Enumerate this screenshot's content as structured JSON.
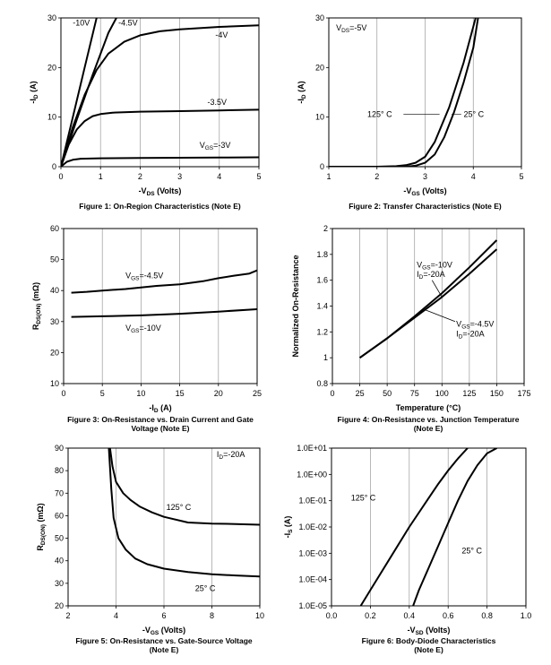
{
  "chart_data": [
    {
      "id": "fig1",
      "type": "line",
      "caption": [
        "Figure 1: On-Region Characteristics (Note E)"
      ],
      "xlabel": {
        "main": "-V",
        "sub": "DS",
        "rest": " (Volts)"
      },
      "ylabel": {
        "main": "-I",
        "sub": "D",
        "rest": " (A)"
      },
      "xlim": [
        0,
        5
      ],
      "ylim": [
        0,
        30
      ],
      "xticks": [
        "0",
        "1",
        "2",
        "3",
        "4",
        "5"
      ],
      "yticks": [
        "0",
        "10",
        "20",
        "30"
      ],
      "xscale": "linear",
      "yscale": "linear",
      "grid": "vertical",
      "series": [
        {
          "name": "-10V",
          "x": [
            0,
            0.3,
            0.6,
            0.9
          ],
          "y": [
            0,
            10,
            20,
            30
          ]
        },
        {
          "name": "-4.5V",
          "x": [
            0,
            0.4,
            0.8,
            1.2,
            1.4
          ],
          "y": [
            0,
            9.5,
            18.5,
            27,
            30
          ]
        },
        {
          "name": "-4V",
          "x": [
            0,
            0.3,
            0.6,
            0.9,
            1.2,
            1.6,
            2.0,
            2.5,
            3.0,
            4.0,
            5.0
          ],
          "y": [
            0,
            8,
            14.5,
            19.5,
            22.8,
            25.2,
            26.5,
            27.3,
            27.7,
            28.2,
            28.5
          ]
        },
        {
          "name": "-3.5V",
          "x": [
            0,
            0.2,
            0.4,
            0.6,
            0.8,
            1.0,
            1.3,
            2.0,
            3.0,
            4.0,
            5.0
          ],
          "y": [
            0,
            4.5,
            7.5,
            9.2,
            10.2,
            10.6,
            10.9,
            11.1,
            11.2,
            11.35,
            11.5
          ]
        },
        {
          "name": "-3V",
          "x": [
            0,
            0.15,
            0.3,
            0.5,
            1.0,
            2.0,
            3.0,
            4.0,
            5.0
          ],
          "y": [
            0,
            1.0,
            1.4,
            1.6,
            1.7,
            1.75,
            1.8,
            1.85,
            1.9
          ]
        }
      ],
      "annotations": [
        {
          "text": "-10V",
          "x": 0.3,
          "y": 28.5
        },
        {
          "text": "-4.5V",
          "x": 1.45,
          "y": 28.5
        },
        {
          "text": "-4V",
          "x": 3.9,
          "y": 26
        },
        {
          "text": "-3.5V",
          "x": 3.7,
          "y": 12.5
        },
        {
          "text": "V",
          "sub": "GS",
          "after": "=-3V",
          "x": 3.5,
          "y": 3.8
        }
      ]
    },
    {
      "id": "fig2",
      "type": "line",
      "caption": [
        "Figure 2: Transfer Characteristics (Note E)"
      ],
      "xlabel": {
        "main": "-V",
        "sub": "GS",
        "rest": " (Volts)"
      },
      "ylabel": {
        "main": "-I",
        "sub": "D",
        "rest": " (A)"
      },
      "xlim": [
        1,
        5
      ],
      "ylim": [
        0,
        30
      ],
      "xticks": [
        "1",
        "2",
        "3",
        "4",
        "5"
      ],
      "yticks": [
        "0",
        "10",
        "20",
        "30"
      ],
      "xscale": "linear",
      "yscale": "linear",
      "grid": "vertical",
      "series": [
        {
          "name": "125° C",
          "x": [
            1.0,
            2.0,
            2.4,
            2.6,
            2.8,
            3.0,
            3.2,
            3.5,
            3.8,
            4.05
          ],
          "y": [
            0,
            0,
            0.1,
            0.3,
            0.8,
            2,
            5,
            12,
            21,
            30
          ]
        },
        {
          "name": "25° C",
          "x": [
            1.0,
            2.6,
            2.8,
            3.0,
            3.2,
            3.4,
            3.6,
            3.8,
            4.0,
            4.1
          ],
          "y": [
            0,
            0,
            0.2,
            0.8,
            2.5,
            6,
            11,
            17,
            24,
            30
          ]
        }
      ],
      "annotations": [
        {
          "text": "V",
          "sub": "DS",
          "after": "=-5V",
          "x": 1.15,
          "y": 27.5
        },
        {
          "text": "125° C",
          "x": 1.8,
          "y": 10
        },
        {
          "text": "25° C",
          "x": 3.8,
          "y": 10
        }
      ]
    },
    {
      "id": "fig3",
      "type": "line",
      "caption": [
        "Figure 3: On-Resistance vs. Drain Current and Gate",
        "Voltage (Note E)"
      ],
      "xlabel": {
        "main": "-I",
        "sub": "D",
        "rest": " (A)"
      },
      "ylabel": {
        "main": "R",
        "sub": "DS(ON)",
        "rest": " (mΩ)"
      },
      "xlim": [
        0,
        25
      ],
      "ylim": [
        10,
        60
      ],
      "xticks": [
        "0",
        "5",
        "10",
        "15",
        "20",
        "25"
      ],
      "yticks": [
        "10",
        "20",
        "30",
        "40",
        "50",
        "60"
      ],
      "xscale": "linear",
      "yscale": "linear",
      "grid": "vertical",
      "series": [
        {
          "name": "VGS=-4.5V",
          "x": [
            1,
            3,
            5,
            8,
            10,
            12,
            15,
            18,
            20,
            22,
            24,
            25
          ],
          "y": [
            39.3,
            39.6,
            40,
            40.5,
            41,
            41.5,
            42,
            43,
            44,
            44.8,
            45.5,
            46.5
          ]
        },
        {
          "name": "VGS=-10V",
          "x": [
            1,
            5,
            10,
            15,
            20,
            25
          ],
          "y": [
            31.5,
            31.7,
            32,
            32.5,
            33.2,
            34
          ]
        }
      ],
      "annotations": [
        {
          "text": "V",
          "sub": "GS",
          "after": "=-4.5V",
          "x": 8,
          "y": 44
        },
        {
          "text": "V",
          "sub": "GS",
          "after": "=-10V",
          "x": 8,
          "y": 27
        }
      ]
    },
    {
      "id": "fig4",
      "type": "line",
      "caption": [
        "Figure 4: On-Resistance vs. Junction Temperature",
        "(Note E)"
      ],
      "xlabel": {
        "main": "Temperature (°C)",
        "sub": "",
        "rest": ""
      },
      "ylabel": {
        "main": "Normalized On-Resistance",
        "sub": "",
        "rest": ""
      },
      "xlim": [
        0,
        175
      ],
      "ylim": [
        0.8,
        2
      ],
      "xticks": [
        "0",
        "25",
        "50",
        "75",
        "100",
        "125",
        "150",
        "175"
      ],
      "yticks": [
        "0.8",
        "1",
        "1.2",
        "1.4",
        "1.6",
        "1.8",
        "2"
      ],
      "xscale": "linear",
      "yscale": "linear",
      "grid": "vertical",
      "series": [
        {
          "name": "VGS=-10V, ID=-20A",
          "x": [
            25,
            50,
            75,
            100,
            125,
            150
          ],
          "y": [
            1.0,
            1.15,
            1.32,
            1.5,
            1.7,
            1.91
          ]
        },
        {
          "name": "VGS=-4.5V, ID=-20A",
          "x": [
            25,
            50,
            75,
            100,
            125,
            150
          ],
          "y": [
            1.0,
            1.15,
            1.31,
            1.47,
            1.65,
            1.84
          ]
        }
      ],
      "annotations": [
        {
          "text": "V",
          "sub": "GS",
          "after": "=-10V",
          "x": 77,
          "y": 1.7
        },
        {
          "text": "I",
          "sub": "D",
          "after": "=-20A",
          "x": 77,
          "y": 1.625
        },
        {
          "text": "V",
          "sub": "GS",
          "after": "=-4.5V",
          "x": 113,
          "y": 1.24
        },
        {
          "text": "I",
          "sub": "D",
          "after": "=-20A",
          "x": 113,
          "y": 1.165
        }
      ]
    },
    {
      "id": "fig5",
      "type": "line",
      "caption": [
        "Figure 5: On-Resistance vs. Gate-Source Voltage",
        "(Note E)"
      ],
      "xlabel": {
        "main": "-V",
        "sub": "GS",
        "rest": " (Volts)"
      },
      "ylabel": {
        "main": "R",
        "sub": "DS(ON)",
        "rest": " (mΩ)"
      },
      "xlim": [
        2,
        10
      ],
      "ylim": [
        20,
        90
      ],
      "xticks": [
        "2",
        "4",
        "6",
        "8",
        "10"
      ],
      "yticks": [
        "20",
        "30",
        "40",
        "50",
        "60",
        "70",
        "80",
        "90"
      ],
      "xscale": "linear",
      "yscale": "linear",
      "grid": "vertical",
      "series": [
        {
          "name": "125° C",
          "x": [
            3.75,
            3.85,
            4.0,
            4.3,
            4.6,
            5.0,
            5.5,
            6.0,
            7.0,
            8.0,
            9.0,
            10.0
          ],
          "y": [
            90,
            82,
            75,
            70,
            67,
            64,
            61.5,
            59.5,
            57,
            56.5,
            56.3,
            56
          ]
        },
        {
          "name": "25° C",
          "x": [
            3.7,
            3.8,
            3.9,
            4.1,
            4.4,
            4.8,
            5.3,
            6.0,
            7.0,
            8.0,
            9.0,
            10.0
          ],
          "y": [
            90,
            72,
            59,
            50,
            45,
            41,
            38.5,
            36.5,
            35,
            34,
            33.5,
            33
          ]
        }
      ],
      "annotations": [
        {
          "text": "I",
          "sub": "D",
          "after": "=-20A",
          "x": 8.2,
          "y": 86
        },
        {
          "text": "125° C",
          "x": 6.1,
          "y": 62.5
        },
        {
          "text": "25° C",
          "x": 7.3,
          "y": 26.5
        }
      ]
    },
    {
      "id": "fig6",
      "type": "line",
      "caption": [
        "Figure 6: Body-Diode Characteristics",
        "(Note E)"
      ],
      "xlabel": {
        "main": "-V",
        "sub": "SD",
        "rest": " (Volts)"
      },
      "ylabel": {
        "main": "-I",
        "sub": "S",
        "rest": " (A)"
      },
      "xlim": [
        0,
        1
      ],
      "ylim": [
        1e-05,
        10
      ],
      "xticks": [
        "0.0",
        "0.2",
        "0.4",
        "0.6",
        "0.8",
        "1.0"
      ],
      "yticks": [
        "1.0E-05",
        "1.0E-04",
        "1.0E-03",
        "1.0E-02",
        "1.0E-01",
        "1.0E+00",
        "1.0E+01"
      ],
      "xscale": "linear",
      "yscale": "log",
      "grid": "vertical",
      "series": [
        {
          "name": "125° C",
          "x": [
            0.15,
            0.2,
            0.3,
            0.4,
            0.5,
            0.55,
            0.6,
            0.65,
            0.7
          ],
          "y": [
            1e-05,
            3.98e-05,
            0.000631,
            0.01,
            0.126,
            0.447,
            1.41,
            3.98,
            10
          ]
        },
        {
          "name": "25° C",
          "x": [
            0.42,
            0.45,
            0.5,
            0.55,
            0.6,
            0.65,
            0.7,
            0.75,
            0.8,
            0.85
          ],
          "y": [
            1e-05,
            3.98e-05,
            0.000282,
            0.002,
            0.0141,
            0.1,
            0.562,
            2.24,
            6.31,
            10
          ]
        }
      ],
      "annotations": [
        {
          "text": "125° C",
          "x": 0.1,
          "y": 0.1
        },
        {
          "text": "25° C",
          "x": 0.67,
          "y": 0.001
        }
      ]
    }
  ]
}
